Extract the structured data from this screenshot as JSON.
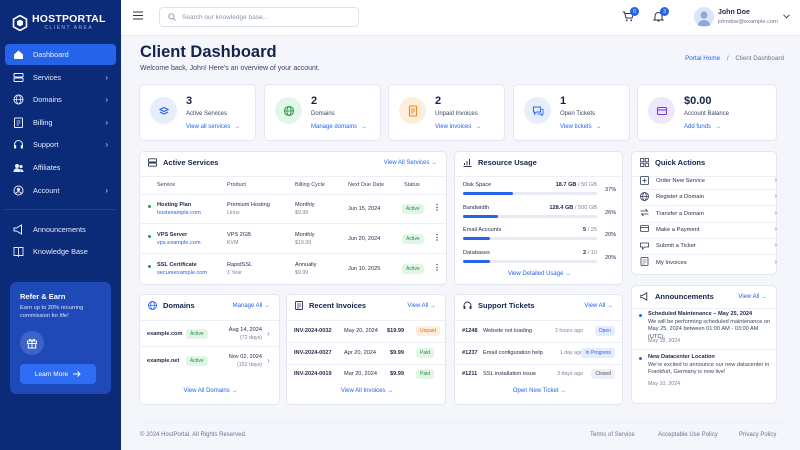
{
  "brand": {
    "name": "HOSTPORTAL",
    "sub": "CLIENT AREA"
  },
  "nav": [
    {
      "label": "Dashboard",
      "icon": "home-icon",
      "active": true,
      "chevron": false
    },
    {
      "label": "Services",
      "icon": "server-icon",
      "chevron": true
    },
    {
      "label": "Domains",
      "icon": "globe-icon",
      "chevron": true
    },
    {
      "label": "Billing",
      "icon": "billing-icon",
      "chevron": true
    },
    {
      "label": "Support",
      "icon": "support-icon",
      "chevron": true
    },
    {
      "label": "Affiliates",
      "icon": "affiliates-icon",
      "chevron": false
    },
    {
      "label": "Account",
      "icon": "account-icon",
      "chevron": true
    }
  ],
  "nav_secondary": [
    {
      "label": "Announcements",
      "icon": "megaphone-icon"
    },
    {
      "label": "Knowledge Base",
      "icon": "book-icon"
    }
  ],
  "refer": {
    "title": "Refer & Earn",
    "text": "Earn up to 20% recurring commission for life!",
    "button": "Learn More"
  },
  "topbar": {
    "search_placeholder": "Search our knowledge base...",
    "cart_count": "0",
    "notif_count": "3",
    "user_name": "John Doe",
    "user_email": "johndoe@example.com"
  },
  "page": {
    "title": "Client Dashboard",
    "subtitle": "Welcome back, John! Here's an overview of your account.",
    "breadcrumb_home": "Portal Home",
    "breadcrumb_sep": "/",
    "breadcrumb_current": "Client Dashboard"
  },
  "stats": [
    {
      "value": "3",
      "label": "Active Services",
      "link": "View all services",
      "icon": "services-icon",
      "color": "#2563eb",
      "bg": "#e6eefc"
    },
    {
      "value": "2",
      "label": "Domains",
      "link": "Manage domains",
      "icon": "globe-icon",
      "color": "#22a04b",
      "bg": "#e4f5ea"
    },
    {
      "value": "2",
      "label": "Unpaid Invoices",
      "link": "View invoices",
      "icon": "invoice-icon",
      "color": "#e98a1c",
      "bg": "#fdeedd"
    },
    {
      "value": "1",
      "label": "Open Tickets",
      "link": "View tickets",
      "icon": "chat-icon",
      "color": "#3b6fe0",
      "bg": "#e6eefc"
    },
    {
      "value": "$0.00",
      "label": "Account Balance",
      "link": "Add funds",
      "icon": "wallet-icon",
      "color": "#7c3aed",
      "bg": "#efe7fc"
    }
  ],
  "services": {
    "title": "Active Services",
    "link": "View All Services",
    "columns": [
      "Service",
      "Product",
      "Billing Cycle",
      "Next Due Date",
      "Status"
    ],
    "rows": [
      {
        "name": "Hosting Plan",
        "host": "hostexample.com",
        "product": "Premium Hosting",
        "product_sub": "Linux",
        "cycle": "Monthly",
        "price": "$9.99",
        "due": "Jun 15, 2024",
        "status": "Active"
      },
      {
        "name": "VPS Server",
        "host": "vps.example.com",
        "product": "VPS 2GB",
        "product_sub": "KVM",
        "cycle": "Monthly",
        "price": "$19.99",
        "due": "Jun 20, 2024",
        "status": "Active"
      },
      {
        "name": "SSL Certificate",
        "host": "secureexample.com",
        "product": "RapidSSL",
        "product_sub": "1 Year",
        "cycle": "Annually",
        "price": "$9.99",
        "due": "Jun 10, 2025",
        "status": "Active"
      }
    ]
  },
  "usage": {
    "title": "Resource Usage",
    "items": [
      {
        "label": "Disk Space",
        "used": "18.7 GB",
        "total": " / 50 GB",
        "pct": "37%",
        "fraction": 0.37
      },
      {
        "label": "Bandwidth",
        "used": "128.4 GB",
        "total": " / 500 GB",
        "pct": "26%",
        "fraction": 0.26
      },
      {
        "label": "Email Accounts",
        "used": "5",
        "total": " / 25",
        "pct": "20%",
        "fraction": 0.2
      },
      {
        "label": "Databases",
        "used": "2",
        "total": " / 10",
        "pct": "20%",
        "fraction": 0.2
      }
    ],
    "link": "View Detailed Usage"
  },
  "quick_actions": {
    "title": "Quick Actions",
    "items": [
      "Order New Service",
      "Register a Domain",
      "Transfer a Domain",
      "Make a Payment",
      "Submit a Ticket",
      "My Invoices"
    ]
  },
  "domains": {
    "title": "Domains",
    "link": "Manage All",
    "rows": [
      {
        "name": "example.com",
        "status": "Active",
        "date": "Aug 14, 2024",
        "days": "(72 days)"
      },
      {
        "name": "example.net",
        "status": "Active",
        "date": "Nov 02, 2024",
        "days": "(152 days)"
      }
    ],
    "footer": "View All Domains"
  },
  "invoices": {
    "title": "Recent Invoices",
    "link": "View All",
    "rows": [
      {
        "id": "INV-2024-0032",
        "date": "May 20, 2024",
        "amount": "$19.99",
        "status": "Unpaid",
        "tone": "orange"
      },
      {
        "id": "INV-2024-0027",
        "date": "Apr 20, 2024",
        "amount": "$9.99",
        "status": "Paid",
        "tone": "green"
      },
      {
        "id": "INV-2024-0019",
        "date": "Mar 20, 2024",
        "amount": "$9.99",
        "status": "Paid",
        "tone": "green"
      }
    ],
    "footer": "View All Invoices"
  },
  "tickets": {
    "title": "Support Tickets",
    "link": "View All",
    "rows": [
      {
        "id": "#1248",
        "subject": "Website not loading",
        "time": "2 hours ago",
        "status": "Open",
        "tone": "blue"
      },
      {
        "id": "#1237",
        "subject": "Email configuration help",
        "time": "1 day ago",
        "status": "In Progress",
        "tone": "blue"
      },
      {
        "id": "#1211",
        "subject": "SSL installation issue",
        "time": "3 days ago",
        "status": "Closed",
        "tone": "gray"
      }
    ],
    "footer": "Open New Ticket"
  },
  "announcements": {
    "title": "Announcements",
    "link": "View All",
    "items": [
      {
        "title": "Scheduled Maintenance – May 25, 2024",
        "body": "We will be performing scheduled maintenance on May 25, 2024 between 01:00 AM - 03:00 AM (UTC).",
        "date": "May 18, 2024"
      },
      {
        "title": "New Datacenter Location",
        "body": "We're excited to announce our new datacenter in Frankfurt, Germany is now live!",
        "date": "May 10, 2024"
      }
    ]
  },
  "footer": {
    "copyright": "© 2024 HostPortal. All Rights Reserved.",
    "links": [
      "Terms of Service",
      "Acceptable Use Policy",
      "Privacy Policy"
    ]
  }
}
